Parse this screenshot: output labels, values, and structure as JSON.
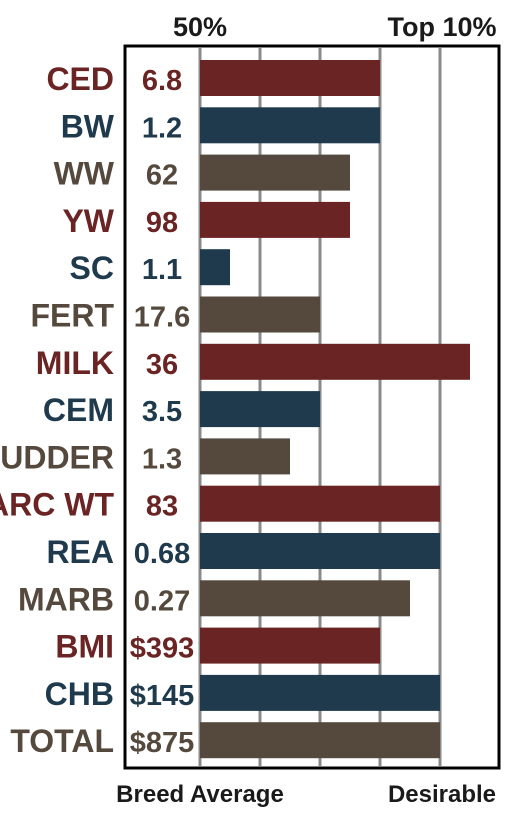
{
  "chart_data": {
    "type": "bar",
    "orientation": "horizontal",
    "scale_labels_top": [
      "50%",
      "Top 10%"
    ],
    "scale_labels_bottom": [
      "Breed Average",
      "Desirable"
    ],
    "grid": true,
    "xlim": [
      0,
      5
    ],
    "categories": [
      "CED",
      "BW",
      "WW",
      "YW",
      "SC",
      "FERT",
      "MILK",
      "CEM",
      "UDDER",
      "CARC WT",
      "REA",
      "MARB",
      "BMI",
      "CHB",
      "TOTAL"
    ],
    "value_labels": [
      "6.8",
      "1.2",
      "62",
      "98",
      "1.1",
      "17.6",
      "36",
      "3.5",
      "1.3",
      "83",
      "0.68",
      "0.27",
      "$393",
      "$145",
      "$875"
    ],
    "bar_lengths": [
      3.0,
      3.0,
      2.5,
      2.5,
      0.5,
      2.0,
      4.5,
      2.0,
      1.5,
      4.0,
      4.0,
      3.5,
      3.0,
      4.0,
      4.0
    ],
    "colors": [
      "#6b2424",
      "#1e3a4c",
      "#55493e",
      "#6b2424",
      "#1e3a4c",
      "#55493e",
      "#6b2424",
      "#1e3a4c",
      "#55493e",
      "#6b2424",
      "#1e3a4c",
      "#55493e",
      "#6b2424",
      "#1e3a4c",
      "#55493e"
    ]
  }
}
